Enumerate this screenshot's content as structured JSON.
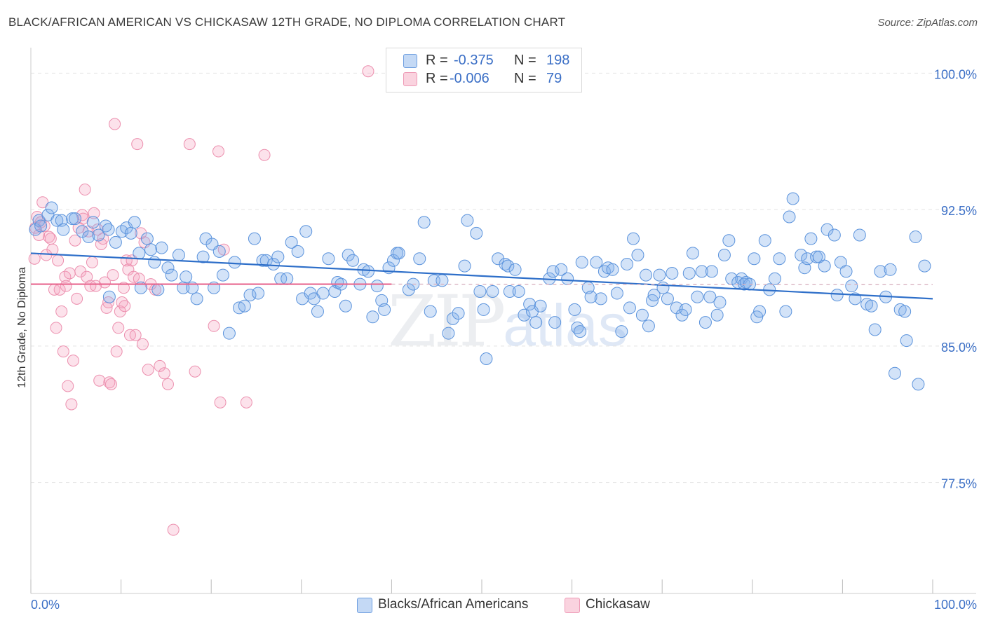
{
  "header": {
    "title": "BLACK/AFRICAN AMERICAN VS CHICKASAW 12TH GRADE, NO DIPLOMA CORRELATION CHART",
    "source": "Source: ZipAtlas.com"
  },
  "watermark": {
    "zip": "ZIP",
    "atlas": "atlas"
  },
  "legend": {
    "r_label": "R =",
    "n_label": "N =",
    "rows": [
      {
        "r": "-0.375",
        "n": "198",
        "color": "#9dc1f0"
      },
      {
        "r": "-0.006",
        "n": "79",
        "color": "#f6b6c8"
      }
    ]
  },
  "bottom_legend": [
    {
      "label": "Blacks/African Americans",
      "color": "#aecdf3"
    },
    {
      "label": "Chickasaw",
      "color": "#f8c6d4"
    }
  ],
  "colors": {
    "blue_fill": "rgba(130,175,235,0.35)",
    "blue_stroke": "#5b93dc",
    "blue_line": "#2e6fc9",
    "pink_fill": "rgba(245,160,190,0.30)",
    "pink_stroke": "#ec8fae",
    "pink_line": "#e8678f",
    "tick_label": "#3b6fc6",
    "grid": "#e3e3e3"
  },
  "chart_data": {
    "type": "scatter",
    "title": "BLACK/AFRICAN AMERICAN VS CHICKASAW 12TH GRADE, NO DIPLOMA CORRELATION CHART",
    "ylabel": "12th Grade, No Diploma",
    "xlabel": "",
    "xlim": [
      0,
      100
    ],
    "ylim": [
      71.4,
      101.4
    ],
    "y_ticks": [
      77.5,
      85.0,
      92.5,
      100.0
    ],
    "y_tick_labels": [
      "77.5%",
      "85.0%",
      "92.5%",
      "100.0%"
    ],
    "x_tick_labels": [
      "0.0%",
      "100.0%"
    ],
    "grid": true,
    "legend_position": "top-center",
    "series": [
      {
        "name": "Blacks/African Americans",
        "R": -0.375,
        "N": 198,
        "trend": {
          "x": [
            0,
            100
          ],
          "y": [
            90.1,
            87.6
          ]
        },
        "points": [
          [
            0.5,
            91.4
          ],
          [
            0.9,
            91.9
          ],
          [
            1.1,
            91.6
          ],
          [
            1.9,
            92.2
          ],
          [
            2.3,
            92.6
          ],
          [
            2.9,
            91.9
          ],
          [
            3.4,
            91.9
          ],
          [
            3.6,
            91.4
          ],
          [
            4.6,
            92.0
          ],
          [
            4.9,
            92.0
          ],
          [
            5.7,
            91.3
          ],
          [
            6.4,
            91.0
          ],
          [
            6.9,
            91.8
          ],
          [
            7.5,
            91.1
          ],
          [
            8.3,
            91.6
          ],
          [
            8.6,
            91.4
          ],
          [
            8.7,
            87.7
          ],
          [
            9.4,
            90.7
          ],
          [
            10.1,
            91.3
          ],
          [
            10.6,
            91.5
          ],
          [
            11.1,
            91.2
          ],
          [
            11.5,
            91.8
          ],
          [
            12.0,
            90.1
          ],
          [
            12.2,
            88.2
          ],
          [
            12.9,
            90.9
          ],
          [
            13.3,
            90.3
          ],
          [
            13.7,
            89.6
          ],
          [
            14.1,
            88.1
          ],
          [
            14.5,
            90.4
          ],
          [
            15.2,
            89.3
          ],
          [
            15.6,
            88.9
          ],
          [
            16.4,
            90.0
          ],
          [
            16.9,
            88.2
          ],
          [
            17.2,
            88.8
          ],
          [
            17.9,
            88.2
          ],
          [
            18.4,
            87.6
          ],
          [
            19.1,
            89.9
          ],
          [
            19.4,
            90.9
          ],
          [
            20.1,
            90.6
          ],
          [
            20.3,
            88.2
          ],
          [
            20.9,
            90.2
          ],
          [
            21.3,
            88.9
          ],
          [
            22.0,
            85.7
          ],
          [
            22.6,
            89.6
          ],
          [
            23.1,
            87.1
          ],
          [
            23.7,
            87.2
          ],
          [
            24.3,
            87.8
          ],
          [
            24.8,
            90.9
          ],
          [
            25.2,
            87.9
          ],
          [
            25.7,
            89.7
          ],
          [
            26.1,
            89.7
          ],
          [
            26.9,
            89.5
          ],
          [
            27.4,
            89.9
          ],
          [
            27.7,
            88.7
          ],
          [
            28.4,
            88.7
          ],
          [
            28.9,
            90.7
          ],
          [
            29.6,
            90.2
          ],
          [
            30.1,
            87.6
          ],
          [
            30.5,
            91.3
          ],
          [
            31.0,
            87.9
          ],
          [
            31.4,
            87.6
          ],
          [
            31.8,
            86.9
          ],
          [
            32.4,
            87.9
          ],
          [
            33.0,
            89.8
          ],
          [
            33.7,
            88.0
          ],
          [
            34.0,
            88.5
          ],
          [
            34.4,
            88.4
          ],
          [
            34.9,
            87.2
          ],
          [
            35.2,
            90.0
          ],
          [
            35.7,
            89.7
          ],
          [
            36.5,
            88.4
          ],
          [
            36.9,
            89.2
          ],
          [
            37.4,
            89.1
          ],
          [
            37.9,
            86.6
          ],
          [
            38.4,
            88.3
          ],
          [
            38.9,
            87.5
          ],
          [
            39.2,
            87.0
          ],
          [
            39.7,
            89.3
          ],
          [
            40.2,
            89.7
          ],
          [
            40.6,
            90.1
          ],
          [
            40.8,
            90.1
          ],
          [
            41.9,
            88.1
          ],
          [
            42.4,
            88.4
          ],
          [
            43.1,
            89.8
          ],
          [
            43.6,
            91.8
          ],
          [
            44.3,
            86.9
          ],
          [
            44.7,
            88.6
          ],
          [
            45.6,
            88.6
          ],
          [
            46.3,
            85.7
          ],
          [
            46.8,
            86.5
          ],
          [
            47.4,
            86.8
          ],
          [
            48.1,
            89.4
          ],
          [
            48.4,
            91.9
          ],
          [
            49.4,
            91.2
          ],
          [
            49.8,
            88.0
          ],
          [
            50.2,
            87.0
          ],
          [
            50.5,
            84.3
          ],
          [
            51.2,
            88.0
          ],
          [
            51.8,
            89.8
          ],
          [
            52.6,
            89.5
          ],
          [
            52.9,
            89.4
          ],
          [
            53.1,
            88.0
          ],
          [
            53.7,
            89.2
          ],
          [
            54.1,
            88.0
          ],
          [
            54.7,
            86.7
          ],
          [
            55.3,
            87.3
          ],
          [
            55.6,
            86.9
          ],
          [
            56.0,
            86.3
          ],
          [
            56.5,
            87.2
          ],
          [
            57.5,
            88.7
          ],
          [
            57.9,
            89.1
          ],
          [
            58.1,
            86.3
          ],
          [
            58.8,
            89.2
          ],
          [
            59.5,
            88.7
          ],
          [
            60.3,
            87.0
          ],
          [
            60.6,
            86.0
          ],
          [
            60.9,
            85.8
          ],
          [
            61.1,
            89.6
          ],
          [
            61.8,
            88.2
          ],
          [
            62.1,
            87.7
          ],
          [
            62.7,
            89.6
          ],
          [
            63.2,
            87.6
          ],
          [
            63.6,
            89.1
          ],
          [
            64.0,
            89.3
          ],
          [
            64.5,
            89.2
          ],
          [
            65.0,
            87.9
          ],
          [
            65.5,
            85.8
          ],
          [
            66.1,
            89.5
          ],
          [
            66.4,
            87.1
          ],
          [
            66.8,
            90.9
          ],
          [
            67.3,
            90.0
          ],
          [
            67.8,
            86.7
          ],
          [
            68.2,
            88.9
          ],
          [
            68.5,
            86.1
          ],
          [
            68.9,
            87.5
          ],
          [
            69.1,
            87.8
          ],
          [
            69.7,
            88.9
          ],
          [
            70.1,
            88.2
          ],
          [
            70.6,
            87.6
          ],
          [
            71.1,
            89.0
          ],
          [
            71.6,
            87.1
          ],
          [
            72.2,
            86.7
          ],
          [
            72.6,
            87.0
          ],
          [
            73.0,
            89.0
          ],
          [
            73.4,
            90.1
          ],
          [
            73.9,
            87.7
          ],
          [
            74.4,
            89.1
          ],
          [
            74.8,
            86.3
          ],
          [
            75.3,
            87.7
          ],
          [
            75.5,
            89.1
          ],
          [
            76.1,
            86.7
          ],
          [
            76.4,
            87.4
          ],
          [
            76.9,
            90.0
          ],
          [
            77.4,
            90.8
          ],
          [
            77.7,
            88.7
          ],
          [
            78.4,
            88.5
          ],
          [
            78.8,
            88.7
          ],
          [
            79.1,
            88.4
          ],
          [
            79.3,
            88.5
          ],
          [
            79.7,
            88.4
          ],
          [
            80.2,
            89.8
          ],
          [
            80.5,
            86.6
          ],
          [
            80.8,
            86.9
          ],
          [
            81.4,
            90.8
          ],
          [
            81.9,
            88.1
          ],
          [
            82.5,
            88.7
          ],
          [
            83.0,
            89.8
          ],
          [
            83.7,
            86.9
          ],
          [
            84.1,
            92.1
          ],
          [
            84.5,
            93.1
          ],
          [
            85.4,
            90.0
          ],
          [
            85.8,
            89.3
          ],
          [
            86.1,
            89.8
          ],
          [
            86.5,
            90.9
          ],
          [
            87.1,
            89.9
          ],
          [
            87.4,
            89.9
          ],
          [
            88.0,
            89.4
          ],
          [
            88.3,
            91.4
          ],
          [
            89.1,
            91.1
          ],
          [
            89.4,
            87.8
          ],
          [
            89.8,
            89.6
          ],
          [
            90.4,
            89.1
          ],
          [
            91.0,
            88.3
          ],
          [
            91.4,
            87.6
          ],
          [
            91.9,
            91.1
          ],
          [
            92.7,
            87.3
          ],
          [
            93.2,
            87.2
          ],
          [
            93.6,
            85.9
          ],
          [
            94.2,
            89.1
          ],
          [
            94.8,
            87.7
          ],
          [
            95.3,
            89.2
          ],
          [
            95.8,
            83.5
          ],
          [
            96.4,
            87.0
          ],
          [
            97.1,
            85.3
          ],
          [
            98.1,
            91.0
          ],
          [
            98.4,
            82.9
          ],
          [
            99.1,
            89.4
          ],
          [
            96.9,
            86.9
          ]
        ]
      },
      {
        "name": "Chickasaw",
        "R": -0.006,
        "N": 79,
        "trend": {
          "x": [
            0,
            40
          ],
          "y": [
            88.4,
            88.4
          ],
          "dashed_extension_to": 100
        },
        "points": [
          [
            0.4,
            89.8
          ],
          [
            0.5,
            91.5
          ],
          [
            0.7,
            92.1
          ],
          [
            0.9,
            91.1
          ],
          [
            1.1,
            91.8
          ],
          [
            1.3,
            92.9
          ],
          [
            1.5,
            91.6
          ],
          [
            1.7,
            90.0
          ],
          [
            2.0,
            91.0
          ],
          [
            2.2,
            90.9
          ],
          [
            2.4,
            90.3
          ],
          [
            2.6,
            88.1
          ],
          [
            2.8,
            86.0
          ],
          [
            3.0,
            89.7
          ],
          [
            3.2,
            88.1
          ],
          [
            3.4,
            86.9
          ],
          [
            3.6,
            84.7
          ],
          [
            3.8,
            88.8
          ],
          [
            3.9,
            88.3
          ],
          [
            4.1,
            82.8
          ],
          [
            4.3,
            89.0
          ],
          [
            4.5,
            81.8
          ],
          [
            4.7,
            84.2
          ],
          [
            4.9,
            90.8
          ],
          [
            5.1,
            87.6
          ],
          [
            5.3,
            91.5
          ],
          [
            5.5,
            89.1
          ],
          [
            5.7,
            92.2
          ],
          [
            5.8,
            92.0
          ],
          [
            6.0,
            93.6
          ],
          [
            6.2,
            88.8
          ],
          [
            6.4,
            91.3
          ],
          [
            6.6,
            88.3
          ],
          [
            6.8,
            89.6
          ],
          [
            7.0,
            92.3
          ],
          [
            7.2,
            88.3
          ],
          [
            7.4,
            91.4
          ],
          [
            7.6,
            83.1
          ],
          [
            7.8,
            90.6
          ],
          [
            8.0,
            90.9
          ],
          [
            8.2,
            88.5
          ],
          [
            8.4,
            87.1
          ],
          [
            8.6,
            87.4
          ],
          [
            8.7,
            83.0
          ],
          [
            8.9,
            82.9
          ],
          [
            9.1,
            88.9
          ],
          [
            9.3,
            97.2
          ],
          [
            9.5,
            84.7
          ],
          [
            9.7,
            86.0
          ],
          [
            9.9,
            86.9
          ],
          [
            10.1,
            87.4
          ],
          [
            10.3,
            88.2
          ],
          [
            10.4,
            87.2
          ],
          [
            10.6,
            89.7
          ],
          [
            10.8,
            89.2
          ],
          [
            11.0,
            85.6
          ],
          [
            11.2,
            89.7
          ],
          [
            11.4,
            88.8
          ],
          [
            11.6,
            85.6
          ],
          [
            11.8,
            96.1
          ],
          [
            12.0,
            88.7
          ],
          [
            12.2,
            91.2
          ],
          [
            12.4,
            85.1
          ],
          [
            12.6,
            90.7
          ],
          [
            13.0,
            83.7
          ],
          [
            13.3,
            88.4
          ],
          [
            13.8,
            88.1
          ],
          [
            14.3,
            83.9
          ],
          [
            14.8,
            83.5
          ],
          [
            15.2,
            82.9
          ],
          [
            15.8,
            74.9
          ],
          [
            17.6,
            96.1
          ],
          [
            18.2,
            83.6
          ],
          [
            20.3,
            86.1
          ],
          [
            21.0,
            81.9
          ],
          [
            21.4,
            90.3
          ],
          [
            23.9,
            81.9
          ],
          [
            20.8,
            95.7
          ],
          [
            25.9,
            95.5
          ],
          [
            37.4,
            100.1
          ]
        ]
      }
    ]
  }
}
